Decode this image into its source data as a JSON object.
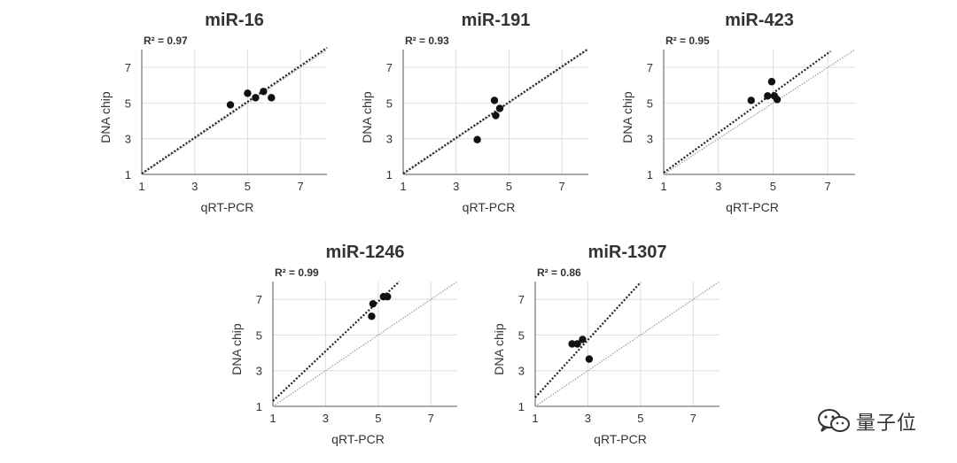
{
  "colors": {
    "point": "#111111",
    "fit": "#222222",
    "identity": "#9a9a9a",
    "grid": "#dedede",
    "axis": "#555555",
    "text": "#333333"
  },
  "watermark": {
    "text": "量子位",
    "icon": "wechat-icon"
  },
  "chart_data": [
    {
      "type": "scatter",
      "title": "miR-16",
      "r2": "R² = 0.97",
      "xlabel": "qRT-PCR",
      "ylabel": "DNA chip",
      "xlim": [
        1,
        8
      ],
      "ylim": [
        1,
        8
      ],
      "xticks": [
        1,
        3,
        5,
        7
      ],
      "yticks": [
        1,
        3,
        5,
        7
      ],
      "points": [
        [
          4.35,
          4.9
        ],
        [
          5.0,
          5.55
        ],
        [
          5.3,
          5.3
        ],
        [
          5.6,
          5.65
        ],
        [
          5.9,
          5.3
        ]
      ],
      "fit_line": [
        [
          1,
          1.05
        ],
        [
          8,
          8.1
        ]
      ],
      "identity_line": [
        [
          1,
          1
        ],
        [
          8,
          8
        ]
      ]
    },
    {
      "type": "scatter",
      "title": "miR-191",
      "r2": "R² = 0.93",
      "xlabel": "qRT-PCR",
      "ylabel": "DNA chip",
      "xlim": [
        1,
        8
      ],
      "ylim": [
        1,
        8
      ],
      "xticks": [
        1,
        3,
        5,
        7
      ],
      "yticks": [
        1,
        3,
        5,
        7
      ],
      "points": [
        [
          3.8,
          2.95
        ],
        [
          4.45,
          5.15
        ],
        [
          4.5,
          4.3
        ],
        [
          4.65,
          4.7
        ]
      ],
      "fit_line": [
        [
          1,
          1.05
        ],
        [
          8,
          8.05
        ]
      ],
      "identity_line": [
        [
          1,
          1
        ],
        [
          8,
          8
        ]
      ]
    },
    {
      "type": "scatter",
      "title": "miR-423",
      "r2": "R² = 0.95",
      "xlabel": "qRT-PCR",
      "ylabel": "DNA chip",
      "xlim": [
        1,
        8
      ],
      "ylim": [
        1,
        8
      ],
      "xticks": [
        1,
        3,
        5,
        7
      ],
      "yticks": [
        1,
        3,
        5,
        7
      ],
      "points": [
        [
          4.2,
          5.15
        ],
        [
          4.8,
          5.4
        ],
        [
          4.95,
          6.2
        ],
        [
          5.05,
          5.4
        ],
        [
          5.15,
          5.2
        ]
      ],
      "fit_line": [
        [
          1,
          1.1
        ],
        [
          7.1,
          7.9
        ]
      ],
      "identity_line": [
        [
          1,
          1
        ],
        [
          8,
          8
        ]
      ]
    },
    {
      "type": "scatter",
      "title": "miR-1246",
      "r2": "R² = 0.99",
      "xlabel": "qRT-PCR",
      "ylabel": "DNA chip",
      "xlim": [
        1,
        8
      ],
      "ylim": [
        1,
        8
      ],
      "xticks": [
        1,
        3,
        5,
        7
      ],
      "yticks": [
        1,
        3,
        5,
        7
      ],
      "points": [
        [
          4.75,
          6.05
        ],
        [
          4.8,
          6.75
        ],
        [
          5.2,
          7.15
        ],
        [
          5.35,
          7.15
        ]
      ],
      "fit_line": [
        [
          1,
          1.3
        ],
        [
          5.8,
          8
        ]
      ],
      "identity_line": [
        [
          1,
          1
        ],
        [
          8,
          8
        ]
      ]
    },
    {
      "type": "scatter",
      "title": "miR-1307",
      "r2": "R² = 0.86",
      "xlabel": "qRT-PCR",
      "ylabel": "DNA chip",
      "xlim": [
        1,
        8
      ],
      "ylim": [
        1,
        8
      ],
      "xticks": [
        1,
        3,
        5,
        7
      ],
      "yticks": [
        1,
        3,
        5,
        7
      ],
      "points": [
        [
          2.4,
          4.5
        ],
        [
          2.6,
          4.5
        ],
        [
          2.8,
          4.75
        ],
        [
          3.05,
          3.65
        ]
      ],
      "fit_line": [
        [
          1,
          1.5
        ],
        [
          5,
          7.95
        ]
      ],
      "identity_line": [
        [
          1,
          1
        ],
        [
          8,
          8
        ]
      ]
    }
  ]
}
